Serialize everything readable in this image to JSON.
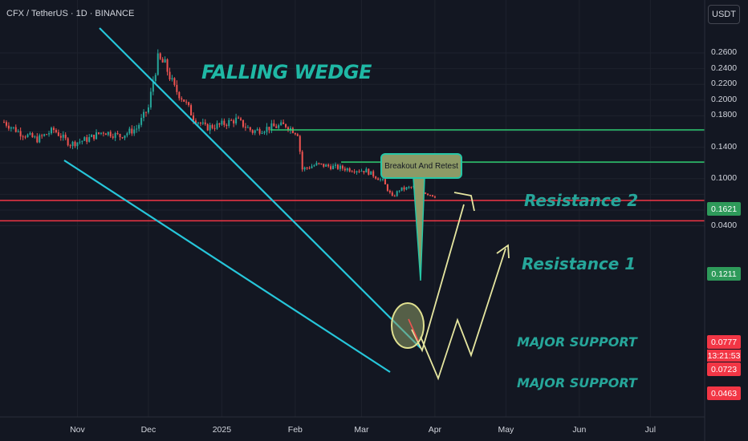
{
  "header": {
    "symbol_line": "CFX / TetherUS · 1D · BINANCE",
    "currency_button": "USDT"
  },
  "annotations": {
    "pattern": "FALLING WEDGE",
    "resistance_2": "Resistance 2",
    "resistance_1": "Resistance 1",
    "support_1": "MAJOR SUPPORT",
    "support_2": "MAJOR SUPPORT",
    "callout": "Breakout And Retest"
  },
  "price_tags": {
    "resistance_2": "0.1621",
    "resistance_1": "0.1211",
    "last_price": "0.0777",
    "countdown": "13:21:53",
    "support_1": "0.0723",
    "support_2": "0.0463"
  },
  "colors": {
    "background": "#131722",
    "bull_candle": "#26a69a",
    "bear_candle": "#ef5350",
    "wedge_lines": "#26c6da",
    "resistance_lines": "#2ecc71",
    "support_lines": "#f23645",
    "projection_arrows": "#e6e6a0"
  },
  "chart_data": {
    "type": "candlestick",
    "symbol": "CFX / TetherUS",
    "interval": "1D",
    "exchange": "BINANCE",
    "y_axis_ticks": [
      "0.2600",
      "0.2400",
      "0.2200",
      "0.2000",
      "0.1800",
      "0.1600",
      "0.1400",
      "0.1200",
      "0.1000",
      "0.0800",
      "0.0600",
      "0.0400"
    ],
    "y_axis_visible_labels": [
      "0.2600",
      "0.2400",
      "0.2200",
      "0.2000",
      "0.1800",
      "0.1400",
      "0.1000",
      "0.0400"
    ],
    "x_axis_labels": [
      "Nov",
      "Dec",
      "2025",
      "Feb",
      "Mar",
      "Apr",
      "May",
      "Jun",
      "Jul"
    ],
    "ylim": [
      0.04,
      0.27
    ],
    "x_dates": [
      "2024-10-01",
      "2024-10-08",
      "2024-10-15",
      "2024-10-22",
      "2024-10-29",
      "2024-11-05",
      "2024-11-12",
      "2024-11-19",
      "2024-11-26",
      "2024-12-01",
      "2024-12-03",
      "2024-12-05",
      "2024-12-08",
      "2024-12-12",
      "2024-12-16",
      "2024-12-20",
      "2024-12-25",
      "2024-12-31",
      "2025-01-07",
      "2025-01-14",
      "2025-01-21",
      "2025-01-28",
      "2025-02-02",
      "2025-02-04",
      "2025-02-10",
      "2025-02-17",
      "2025-02-24",
      "2025-03-03",
      "2025-03-10",
      "2025-03-14",
      "2025-03-17",
      "2025-03-24",
      "2025-03-28",
      "2025-04-01"
    ],
    "close_values": [
      0.172,
      0.158,
      0.15,
      0.162,
      0.144,
      0.15,
      0.16,
      0.154,
      0.164,
      0.19,
      0.225,
      0.252,
      0.245,
      0.215,
      0.2,
      0.178,
      0.165,
      0.168,
      0.175,
      0.16,
      0.165,
      0.168,
      0.158,
      0.112,
      0.118,
      0.115,
      0.112,
      0.11,
      0.097,
      0.076,
      0.086,
      0.09,
      0.082,
      0.0777
    ],
    "levels": [
      {
        "label": "Resistance 2",
        "value": 0.1621
      },
      {
        "label": "Resistance 1",
        "value": 0.1211
      },
      {
        "label": "MAJOR SUPPORT",
        "value": 0.0723
      },
      {
        "label": "MAJOR SUPPORT",
        "value": 0.0463
      }
    ],
    "last_price": 0.0777
  }
}
